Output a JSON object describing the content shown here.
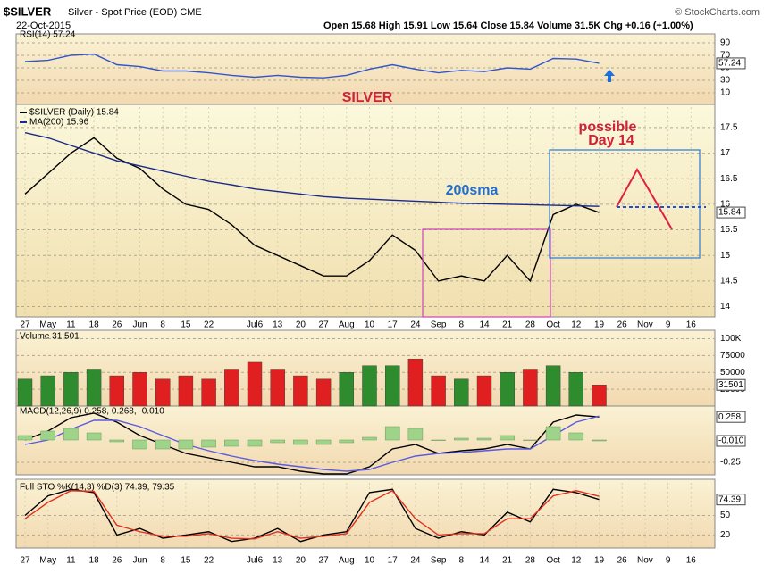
{
  "header": {
    "symbol": "$SILVER",
    "description": "Silver - Spot Price (EOD) CME",
    "date": "22-Oct-2015",
    "quote": "Open 15.68  High 15.91  Low 15.64  Close 15.84  Volume 31.5K  Chg +0.16 (+1.00%)",
    "copyright": "© StockCharts.com"
  },
  "chart_data": [
    {
      "type": "line",
      "title": "RSI(14) 57.24",
      "ylim": [
        0,
        100
      ],
      "yticks": [
        90,
        70,
        50,
        30,
        10
      ],
      "grid": true,
      "series": [
        {
          "color": "#3355cc",
          "values": [
            60,
            62,
            70,
            72,
            55,
            52,
            45,
            45,
            42,
            38,
            35,
            38,
            35,
            34,
            38,
            48,
            55,
            48,
            42,
            46,
            44,
            50,
            48,
            65,
            64,
            57.24,
            null,
            null,
            null,
            null
          ]
        }
      ]
    },
    {
      "type": "line",
      "annotations": [
        "SILVER",
        "200sma",
        "possible",
        "Day 14"
      ],
      "categories": [
        "27",
        "May",
        "11",
        "18",
        "26",
        "Jun",
        "8",
        "15",
        "22",
        null,
        "Jul6",
        "13",
        "20",
        "27",
        "Aug",
        "10",
        "17",
        "24",
        "Sep",
        "8",
        "14",
        "21",
        "28",
        "Oct",
        "12",
        "19",
        "26",
        "Nov",
        "9",
        "16"
      ],
      "ylim": [
        13.8,
        17.9
      ],
      "yticks": [
        14.0,
        14.5,
        15.0,
        15.5,
        16.0,
        16.5,
        17.0,
        17.5
      ],
      "grid": true,
      "series": [
        {
          "name": "$SILVER (Daily) 15.84",
          "color": "#000000",
          "values": [
            16.2,
            16.6,
            17.0,
            17.3,
            16.9,
            16.7,
            16.3,
            16.0,
            15.9,
            15.6,
            15.2,
            15.0,
            14.8,
            14.6,
            14.6,
            14.9,
            15.4,
            15.1,
            14.5,
            14.6,
            14.5,
            15.0,
            14.5,
            15.8,
            16.0,
            15.84,
            null,
            null,
            null,
            null
          ]
        },
        {
          "name": "MA(200) 15.96",
          "color": "#1a2a8a",
          "values": [
            17.4,
            17.3,
            17.15,
            17.0,
            16.85,
            16.75,
            16.65,
            16.55,
            16.45,
            16.38,
            16.3,
            16.25,
            16.2,
            16.15,
            16.12,
            16.1,
            16.08,
            16.06,
            16.04,
            16.02,
            16.01,
            16.0,
            15.99,
            15.98,
            15.97,
            15.96,
            null,
            null,
            null,
            null
          ]
        }
      ]
    },
    {
      "type": "bar",
      "title": "Volume 31,501",
      "up_color": "#2e8b2e",
      "down_color": "#e02020",
      "ylim": [
        0,
        110000
      ],
      "yticks": [
        {
          "value": 100000,
          "label": "100K"
        },
        75000,
        50000,
        25000
      ],
      "grid": true,
      "values": [
        40000,
        45000,
        50000,
        55000,
        45000,
        50000,
        40000,
        45000,
        40000,
        55000,
        65000,
        55000,
        45000,
        40000,
        50000,
        60000,
        60000,
        70000,
        45000,
        40000,
        45000,
        50000,
        55000,
        60000,
        50000,
        31501,
        null,
        null,
        null,
        null
      ]
    },
    {
      "type": "line",
      "title": "MACD(12,26,9) 0.258, 0.268, -0.010",
      "ylim": [
        -0.37,
        0.37
      ],
      "yticks": [
        -0.25
      ],
      "grid": true,
      "series": [
        {
          "color": "#000000",
          "values": [
            0.0,
            0.1,
            0.25,
            0.3,
            0.2,
            0.05,
            -0.05,
            -0.15,
            -0.2,
            -0.25,
            -0.3,
            -0.3,
            -0.35,
            -0.38,
            -0.38,
            -0.3,
            -0.1,
            -0.05,
            -0.15,
            -0.12,
            -0.1,
            -0.05,
            -0.1,
            0.2,
            0.28,
            0.258,
            null,
            null,
            null,
            null
          ]
        },
        {
          "color": "#5a5ae0",
          "values": [
            -0.05,
            0.0,
            0.12,
            0.22,
            0.22,
            0.15,
            0.05,
            -0.05,
            -0.12,
            -0.18,
            -0.23,
            -0.27,
            -0.3,
            -0.33,
            -0.35,
            -0.33,
            -0.25,
            -0.18,
            -0.15,
            -0.14,
            -0.12,
            -0.1,
            -0.1,
            0.05,
            0.2,
            0.268,
            null,
            null,
            null,
            null
          ]
        },
        {
          "style": "histogram",
          "color": "#9ed48a",
          "values": [
            0.05,
            0.1,
            0.13,
            0.08,
            -0.02,
            -0.1,
            -0.1,
            -0.1,
            -0.08,
            -0.07,
            -0.07,
            -0.03,
            -0.05,
            -0.05,
            -0.03,
            0.03,
            0.15,
            0.13,
            0.0,
            0.02,
            0.02,
            0.05,
            0.0,
            0.15,
            0.08,
            -0.01,
            null,
            null,
            null,
            null
          ],
          "value_labels": [
            null,
            null,
            null,
            null,
            null,
            null,
            null,
            null,
            null,
            null,
            null,
            null,
            null,
            null,
            null,
            null,
            null,
            null,
            null,
            null,
            null,
            null,
            null,
            null,
            null,
            "-0.010",
            null,
            null,
            null,
            null
          ]
        }
      ]
    },
    {
      "type": "line",
      "title": "Full STO %K(14,3) %D(3) 74.39, 79.35",
      "ylim": [
        0,
        100
      ],
      "yticks": [
        50,
        20
      ],
      "grid": true,
      "categories": [
        "27",
        "May",
        "11",
        "18",
        "26",
        "Jun",
        "8",
        "15",
        "22",
        null,
        "Jul6",
        "13",
        "20",
        "27",
        "Aug",
        "10",
        "17",
        "24",
        "Sep",
        "8",
        "14",
        "21",
        "28",
        "Oct",
        "12",
        "19",
        "26",
        "Nov",
        "9",
        "16"
      ],
      "series": [
        {
          "color": "#000000",
          "values": [
            50,
            80,
            90,
            85,
            20,
            30,
            15,
            20,
            25,
            10,
            15,
            30,
            10,
            20,
            25,
            85,
            90,
            30,
            15,
            25,
            20,
            55,
            40,
            90,
            85,
            74.39,
            null,
            null,
            null,
            null
          ]
        },
        {
          "color": "#e03020",
          "values": [
            45,
            70,
            88,
            87,
            35,
            25,
            18,
            18,
            22,
            15,
            14,
            25,
            15,
            18,
            22,
            70,
            88,
            45,
            20,
            22,
            22,
            45,
            45,
            80,
            88,
            79.35,
            null,
            null,
            null,
            null
          ]
        }
      ]
    }
  ]
}
